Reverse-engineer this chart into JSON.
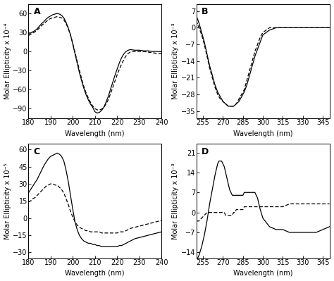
{
  "panel_A": {
    "label": "A",
    "xlabel": "Wavelength (nm)",
    "ylabel": "Molar Ellipticity x 10⁻⁴",
    "xlim": [
      180,
      240
    ],
    "ylim": [
      -105,
      75
    ],
    "yticks": [
      -90,
      -60,
      -30,
      0,
      30,
      60
    ],
    "xticks": [
      180,
      190,
      200,
      210,
      220,
      230,
      240
    ],
    "solid_x": [
      180,
      181,
      182,
      183,
      184,
      185,
      186,
      187,
      188,
      189,
      190,
      191,
      192,
      193,
      194,
      195,
      196,
      197,
      198,
      199,
      200,
      201,
      202,
      203,
      204,
      205,
      206,
      207,
      208,
      209,
      210,
      211,
      212,
      213,
      214,
      215,
      216,
      217,
      218,
      219,
      220,
      221,
      222,
      223,
      224,
      225,
      226,
      228,
      230,
      232,
      234,
      236,
      238,
      240
    ],
    "solid_y": [
      27,
      29,
      31,
      33,
      36,
      40,
      44,
      47,
      51,
      54,
      56,
      58,
      59,
      60,
      59,
      57,
      53,
      46,
      37,
      26,
      12,
      -3,
      -18,
      -33,
      -46,
      -58,
      -68,
      -76,
      -83,
      -88,
      -95,
      -97,
      -96,
      -93,
      -88,
      -80,
      -71,
      -60,
      -49,
      -38,
      -28,
      -18,
      -10,
      -4,
      0,
      2,
      3,
      2,
      2,
      1,
      1,
      0,
      0,
      0
    ],
    "dashed_x": [
      180,
      181,
      182,
      183,
      184,
      185,
      186,
      187,
      188,
      189,
      190,
      191,
      192,
      193,
      194,
      195,
      196,
      197,
      198,
      199,
      200,
      201,
      202,
      203,
      204,
      205,
      206,
      207,
      208,
      209,
      210,
      211,
      212,
      213,
      214,
      215,
      216,
      217,
      218,
      219,
      220,
      221,
      222,
      223,
      224,
      225,
      226,
      228,
      230,
      232,
      234,
      236,
      238,
      240
    ],
    "dashed_y": [
      25,
      27,
      29,
      31,
      34,
      37,
      41,
      44,
      47,
      50,
      52,
      53,
      54,
      55,
      54,
      53,
      50,
      44,
      36,
      26,
      13,
      -1,
      -15,
      -29,
      -43,
      -55,
      -65,
      -73,
      -80,
      -86,
      -90,
      -92,
      -92,
      -91,
      -88,
      -83,
      -76,
      -67,
      -57,
      -47,
      -37,
      -28,
      -20,
      -13,
      -7,
      -3,
      -1,
      0,
      0,
      0,
      -1,
      -2,
      -3,
      -3
    ]
  },
  "panel_B": {
    "label": "B",
    "xlabel": "Wavelength (nm)",
    "ylabel": "Molar Ellipticity x 10⁻³",
    "xlim": [
      250,
      350
    ],
    "ylim": [
      -38,
      10
    ],
    "yticks": [
      -35,
      -28,
      -21,
      -14,
      -7,
      0,
      7
    ],
    "xticks": [
      255,
      270,
      285,
      300,
      315,
      330,
      345
    ],
    "solid_x": [
      250,
      252,
      254,
      256,
      258,
      260,
      262,
      264,
      266,
      268,
      270,
      272,
      274,
      276,
      278,
      280,
      282,
      284,
      286,
      288,
      290,
      292,
      294,
      296,
      298,
      300,
      305,
      310,
      315,
      320,
      325,
      330,
      335,
      340,
      345,
      350
    ],
    "solid_y": [
      5,
      2,
      -2,
      -6,
      -11,
      -16,
      -20,
      -24,
      -27,
      -29,
      -31,
      -32,
      -33,
      -33,
      -33,
      -32,
      -31,
      -29,
      -27,
      -24,
      -20,
      -16,
      -12,
      -9,
      -6,
      -3,
      -1,
      0,
      0,
      0,
      0,
      0,
      0,
      0,
      0,
      0
    ],
    "dashed_x": [
      250,
      252,
      254,
      256,
      258,
      260,
      262,
      264,
      266,
      268,
      270,
      272,
      274,
      276,
      278,
      280,
      282,
      284,
      286,
      288,
      290,
      292,
      294,
      296,
      298,
      300,
      305,
      310,
      315,
      320,
      325,
      330,
      335,
      340,
      345,
      350
    ],
    "dashed_y": [
      3,
      0,
      -3,
      -7,
      -12,
      -17,
      -21,
      -25,
      -28,
      -30,
      -31,
      -32,
      -33,
      -33,
      -33,
      -32,
      -30,
      -28,
      -26,
      -22,
      -18,
      -14,
      -10,
      -7,
      -4,
      -2,
      0,
      0,
      0,
      0,
      0,
      0,
      0,
      0,
      0,
      0
    ]
  },
  "panel_C": {
    "label": "C",
    "xlabel": "Wavelength (nm)",
    "ylabel": "Molar Ellipticity x 10⁻⁵",
    "xlim": [
      180,
      240
    ],
    "ylim": [
      -35,
      65
    ],
    "yticks": [
      -30,
      -15,
      0,
      15,
      30,
      45,
      60
    ],
    "xticks": [
      180,
      190,
      200,
      210,
      220,
      230,
      240
    ],
    "solid_x": [
      180,
      181,
      182,
      183,
      184,
      185,
      186,
      187,
      188,
      189,
      190,
      191,
      192,
      193,
      194,
      195,
      196,
      197,
      198,
      199,
      200,
      201,
      202,
      203,
      204,
      205,
      206,
      207,
      208,
      209,
      210,
      211,
      212,
      213,
      214,
      215,
      216,
      217,
      218,
      219,
      220,
      221,
      222,
      223,
      224,
      225,
      226,
      228,
      230,
      232,
      234,
      236,
      238,
      240
    ],
    "solid_y": [
      22,
      25,
      28,
      31,
      34,
      38,
      42,
      46,
      49,
      52,
      54,
      55,
      56,
      57,
      56,
      54,
      50,
      42,
      32,
      20,
      8,
      -3,
      -10,
      -15,
      -18,
      -20,
      -21,
      -22,
      -22,
      -23,
      -23,
      -24,
      -24,
      -25,
      -25,
      -25,
      -25,
      -25,
      -25,
      -25,
      -25,
      -24,
      -24,
      -23,
      -22,
      -21,
      -20,
      -18,
      -17,
      -16,
      -15,
      -14,
      -13,
      -12
    ],
    "dashed_x": [
      180,
      181,
      182,
      183,
      184,
      185,
      186,
      187,
      188,
      189,
      190,
      191,
      192,
      193,
      194,
      195,
      196,
      197,
      198,
      199,
      200,
      201,
      202,
      203,
      204,
      205,
      206,
      207,
      208,
      209,
      210,
      211,
      212,
      213,
      214,
      215,
      216,
      217,
      218,
      219,
      220,
      221,
      222,
      223,
      224,
      225,
      226,
      228,
      230,
      232,
      234,
      236,
      238,
      240
    ],
    "dashed_y": [
      14,
      15,
      17,
      18,
      20,
      22,
      24,
      26,
      28,
      29,
      30,
      30,
      29,
      29,
      27,
      25,
      22,
      17,
      12,
      6,
      1,
      -3,
      -6,
      -8,
      -9,
      -10,
      -11,
      -11,
      -12,
      -12,
      -12,
      -12,
      -12,
      -13,
      -13,
      -13,
      -13,
      -13,
      -13,
      -13,
      -13,
      -12,
      -12,
      -12,
      -11,
      -10,
      -9,
      -8,
      -7,
      -6,
      -5,
      -4,
      -3,
      -2
    ]
  },
  "panel_D": {
    "label": "D",
    "xlabel": "Wavelength (nm)",
    "ylabel": "Molar Ellipticity x 10⁻³",
    "xlim": [
      250,
      350
    ],
    "ylim": [
      -16,
      24
    ],
    "yticks": [
      -14,
      -7,
      0,
      7,
      14,
      21
    ],
    "xticks": [
      255,
      270,
      285,
      300,
      315,
      330,
      345
    ],
    "solid_x": [
      250,
      252,
      254,
      256,
      258,
      260,
      262,
      264,
      265,
      266,
      267,
      268,
      269,
      270,
      271,
      272,
      273,
      274,
      275,
      276,
      277,
      278,
      279,
      280,
      281,
      282,
      283,
      284,
      285,
      286,
      287,
      288,
      289,
      290,
      291,
      292,
      293,
      294,
      295,
      296,
      297,
      298,
      300,
      305,
      310,
      315,
      320,
      325,
      330,
      335,
      340,
      345,
      350
    ],
    "solid_y": [
      -17,
      -15,
      -12,
      -8,
      -3,
      3,
      8,
      13,
      15,
      17,
      18,
      18,
      18,
      17,
      16,
      14,
      12,
      10,
      8,
      7,
      6,
      6,
      6,
      6,
      6,
      6,
      6,
      6,
      6,
      7,
      7,
      7,
      7,
      7,
      7,
      7,
      7,
      7,
      6,
      5,
      3,
      1,
      -2,
      -5,
      -6,
      -6,
      -7,
      -7,
      -7,
      -7,
      -7,
      -6,
      -5
    ],
    "dashed_x": [
      250,
      252,
      254,
      256,
      258,
      260,
      262,
      264,
      265,
      266,
      267,
      268,
      269,
      270,
      271,
      272,
      273,
      274,
      275,
      276,
      277,
      278,
      279,
      280,
      281,
      282,
      283,
      284,
      285,
      286,
      287,
      288,
      289,
      290,
      291,
      292,
      293,
      294,
      295,
      296,
      297,
      298,
      300,
      305,
      310,
      315,
      320,
      325,
      330,
      335,
      340,
      345,
      350
    ],
    "dashed_y": [
      -3,
      -3,
      -2,
      -1,
      0,
      0,
      0,
      0,
      0,
      0,
      0,
      0,
      0,
      0,
      0,
      -1,
      -1,
      -1,
      -1,
      -1,
      -1,
      0,
      0,
      1,
      1,
      1,
      1,
      1,
      1,
      2,
      2,
      2,
      2,
      2,
      2,
      2,
      2,
      2,
      2,
      2,
      2,
      2,
      2,
      2,
      2,
      2,
      3,
      3,
      3,
      3,
      3,
      3,
      3
    ]
  },
  "line_color": "#000000",
  "bg_color": "#ffffff",
  "fontsize_label": 7,
  "fontsize_tick": 7,
  "fontsize_panel": 9
}
